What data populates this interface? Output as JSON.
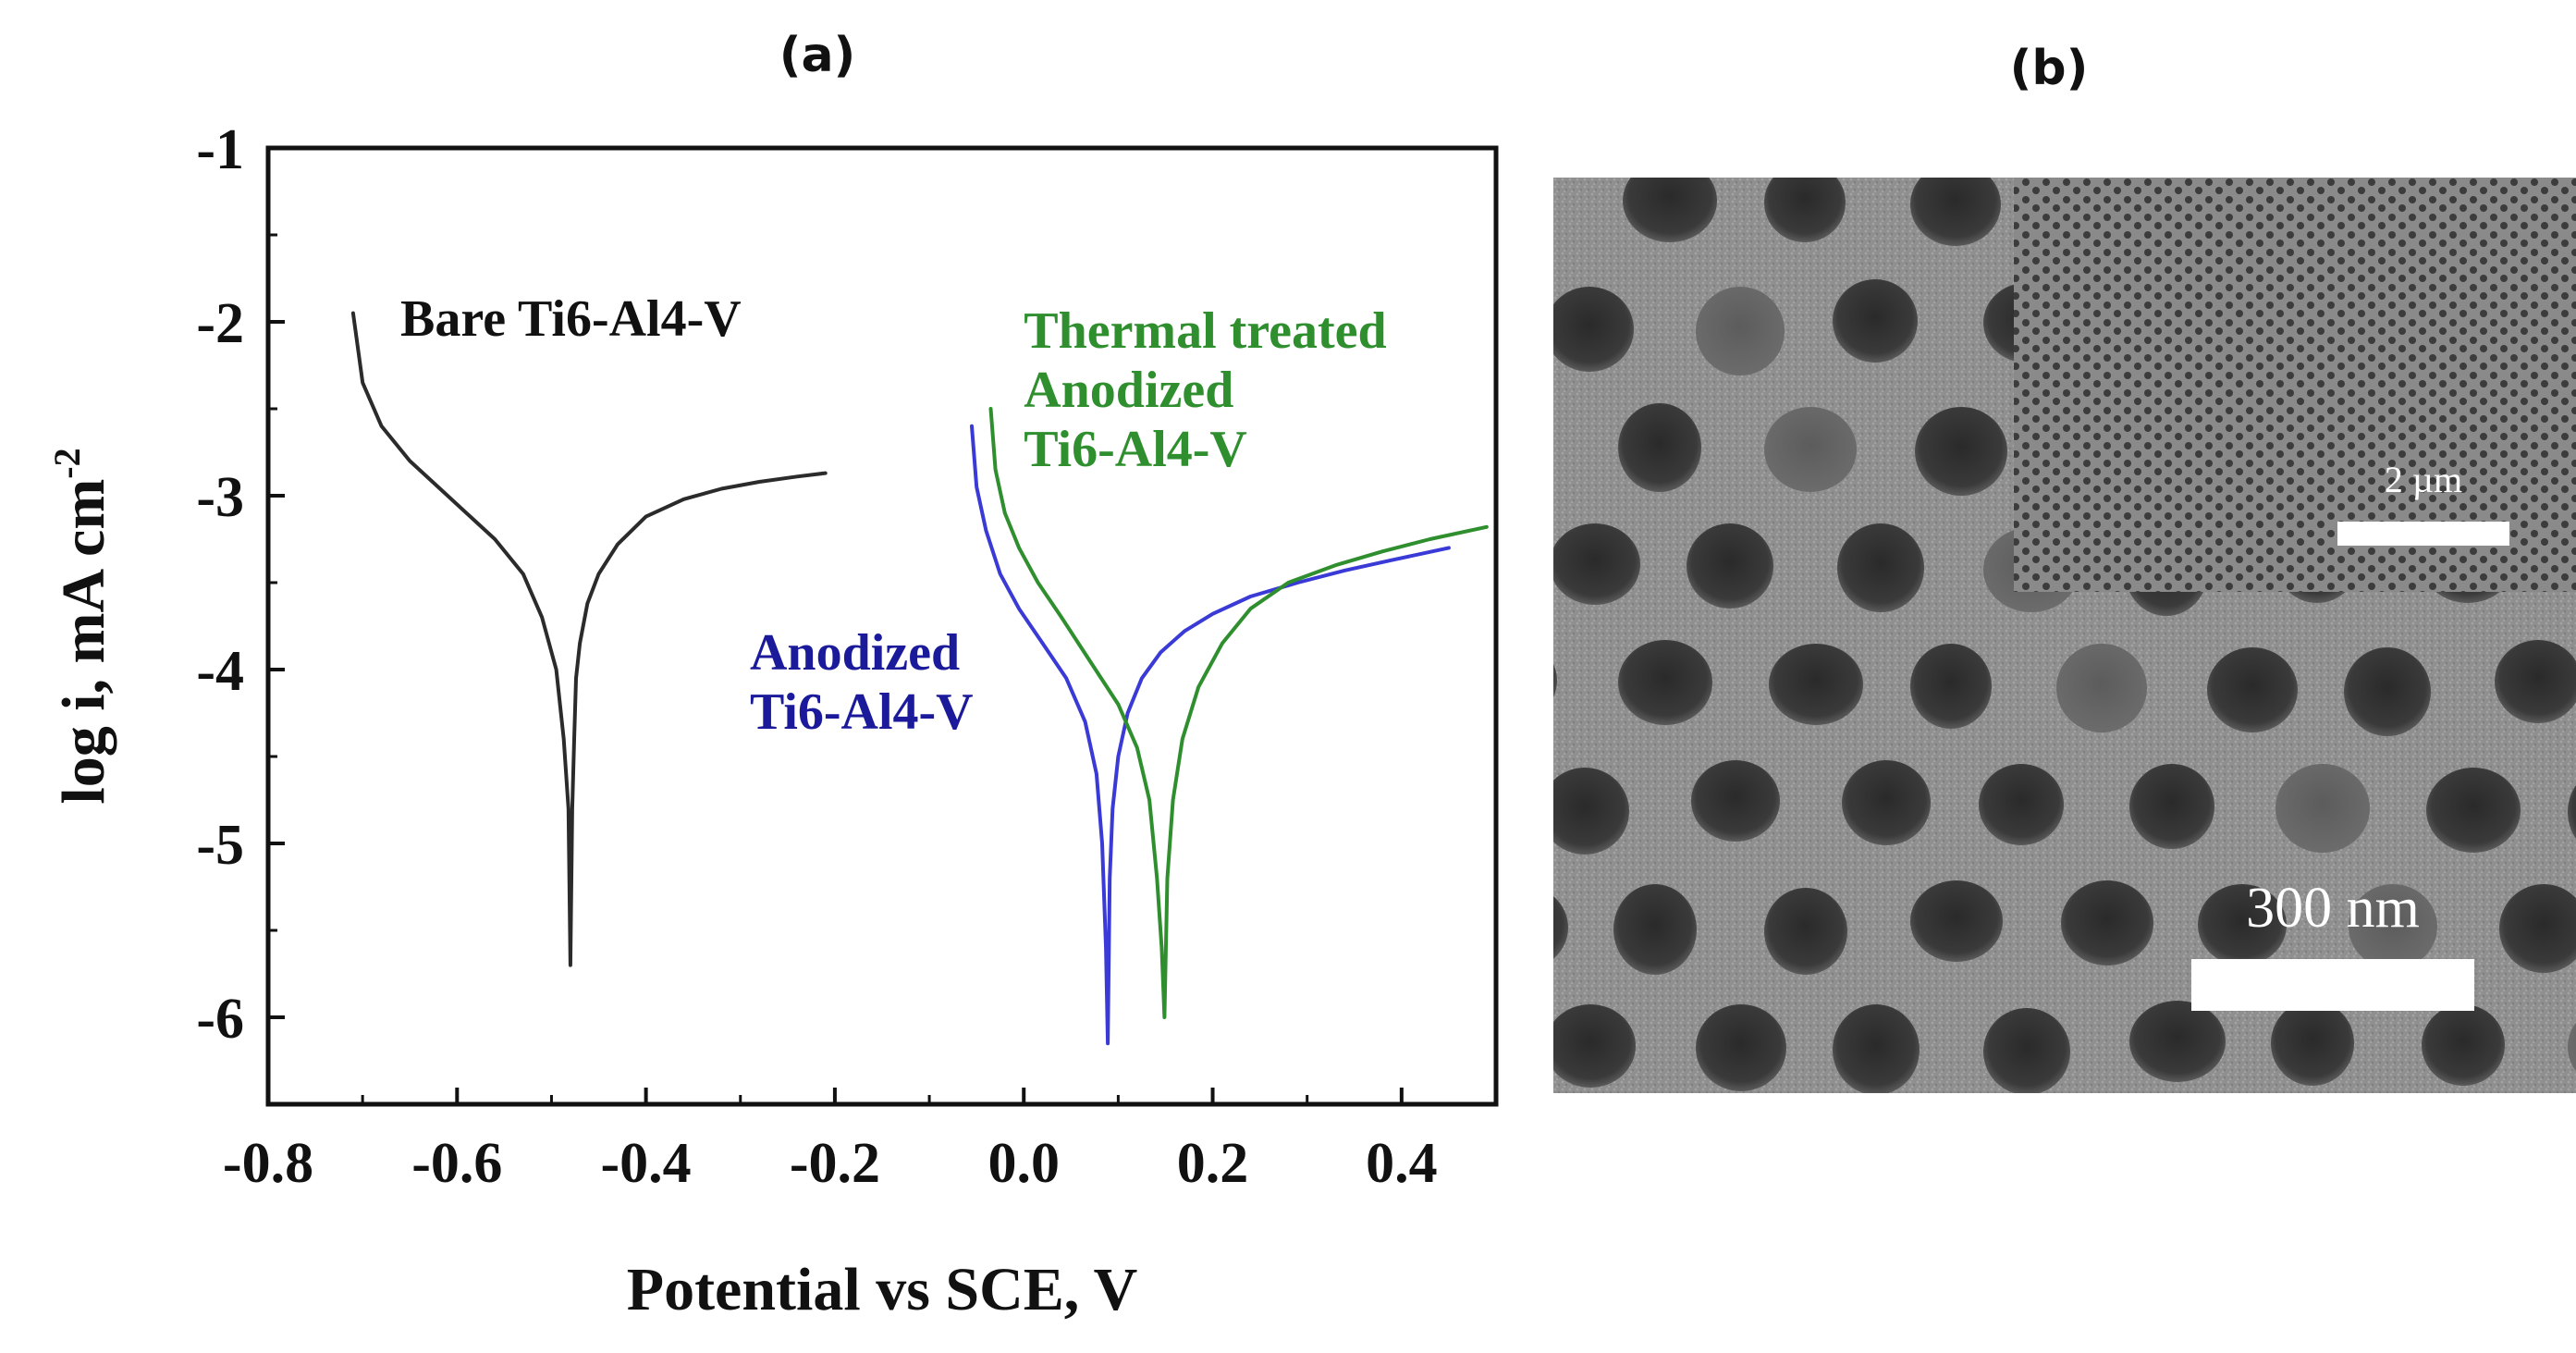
{
  "panels": {
    "a_label": "(a)",
    "b_label": "(b)"
  },
  "chart_data": {
    "type": "line",
    "xlabel": "Potential vs SCE, V",
    "ylabel": "log i, mA cm",
    "ylabel_superscript": "-2",
    "xlim": [
      -0.8,
      0.5
    ],
    "ylim": [
      -6.5,
      -1
    ],
    "x_ticks": [
      "-0.8",
      "-0.6",
      "-0.4",
      "-0.2",
      "0.0",
      "0.2",
      "0.4"
    ],
    "y_ticks": [
      "-1",
      "-2",
      "-3",
      "-4",
      "-5",
      "-6"
    ],
    "grid": false,
    "series": [
      {
        "name": "Bare Ti6-Al4-V",
        "color": "#2b2b2b",
        "x": [
          -0.71,
          -0.7,
          -0.68,
          -0.65,
          -0.62,
          -0.59,
          -0.56,
          -0.53,
          -0.51,
          -0.495,
          -0.487,
          -0.482,
          -0.48,
          -0.478,
          -0.476,
          -0.474,
          -0.47,
          -0.462,
          -0.45,
          -0.43,
          -0.4,
          -0.36,
          -0.32,
          -0.28,
          -0.24,
          -0.21
        ],
        "y": [
          -1.95,
          -2.35,
          -2.6,
          -2.8,
          -2.95,
          -3.1,
          -3.25,
          -3.45,
          -3.7,
          -4.0,
          -4.4,
          -4.8,
          -5.7,
          -4.8,
          -4.4,
          -4.05,
          -3.85,
          -3.62,
          -3.45,
          -3.28,
          -3.12,
          -3.02,
          -2.96,
          -2.92,
          -2.89,
          -2.87
        ]
      },
      {
        "name": "Anodized Ti6-Al4-V",
        "color": "#3a3ad6",
        "x": [
          -0.055,
          -0.05,
          -0.04,
          -0.025,
          -0.005,
          0.02,
          0.045,
          0.065,
          0.077,
          0.083,
          0.087,
          0.089,
          0.091,
          0.094,
          0.1,
          0.11,
          0.125,
          0.145,
          0.17,
          0.2,
          0.24,
          0.29,
          0.34,
          0.39,
          0.45
        ],
        "y": [
          -2.6,
          -2.95,
          -3.2,
          -3.45,
          -3.65,
          -3.85,
          -4.05,
          -4.3,
          -4.6,
          -5.0,
          -5.6,
          -6.15,
          -5.2,
          -4.8,
          -4.5,
          -4.25,
          -4.05,
          -3.9,
          -3.78,
          -3.68,
          -3.58,
          -3.5,
          -3.43,
          -3.37,
          -3.3
        ]
      },
      {
        "name": "Thermal treated Anodized Ti6-Al4-V",
        "color": "#2f8f2f",
        "x": [
          -0.035,
          -0.03,
          -0.02,
          -0.005,
          0.015,
          0.04,
          0.07,
          0.1,
          0.12,
          0.133,
          0.141,
          0.146,
          0.149,
          0.152,
          0.158,
          0.168,
          0.185,
          0.21,
          0.24,
          0.28,
          0.33,
          0.38,
          0.43,
          0.49
        ],
        "y": [
          -2.5,
          -2.85,
          -3.1,
          -3.3,
          -3.5,
          -3.7,
          -3.95,
          -4.2,
          -4.45,
          -4.75,
          -5.2,
          -5.6,
          -6.0,
          -5.2,
          -4.75,
          -4.4,
          -4.1,
          -3.85,
          -3.65,
          -3.5,
          -3.4,
          -3.32,
          -3.25,
          -3.18
        ]
      }
    ],
    "annotations": [
      {
        "lines": [
          "Bare Ti6-Al4-V"
        ],
        "color": "#111111",
        "x": -0.66,
        "y": -2.08
      },
      {
        "lines": [
          "Anodized",
          "Ti6-Al4-V"
        ],
        "color": "#1a1a9a",
        "x": -0.29,
        "y": -4.0
      },
      {
        "lines": [
          "Thermal treated",
          "Anodized",
          "Ti6-Al4-V"
        ],
        "color": "#2f8f2f",
        "x": 0.0,
        "y": -2.15
      }
    ]
  },
  "sem_image": {
    "scale_bar_main": "300 nm",
    "scale_bar_inset": "2 µm"
  }
}
